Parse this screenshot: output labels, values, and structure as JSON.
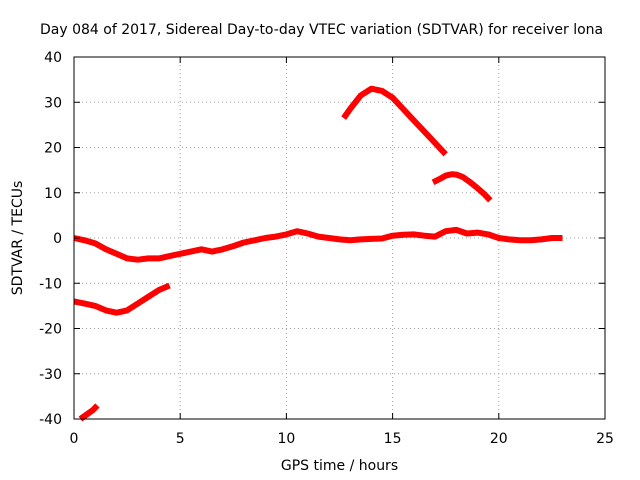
{
  "chart_data": {
    "type": "line",
    "title": "Day 084 of 2017, Sidereal Day-to-day VTEC variation (SDTVAR) for receiver lona",
    "xlabel": "GPS time / hours",
    "ylabel": "SDTVAR / TECUs",
    "xlim": [
      0,
      25
    ],
    "ylim": [
      -40,
      40
    ],
    "xticks": [
      0,
      5,
      10,
      15,
      20,
      25
    ],
    "yticks": [
      -40,
      -30,
      -20,
      -10,
      0,
      10,
      20,
      30,
      40
    ],
    "grid": true,
    "series_color": "#ff0000",
    "series": [
      {
        "name": "main",
        "x": [
          0.0,
          0.5,
          1.0,
          1.5,
          2.0,
          2.5,
          3.0,
          3.5,
          4.0,
          4.5,
          5.0,
          5.5,
          6.0,
          6.5,
          7.0,
          7.5,
          8.0,
          8.5,
          9.0,
          9.5,
          10.0,
          10.5,
          11.0,
          11.5,
          12.0,
          12.5,
          13.0,
          13.5,
          14.0,
          14.5,
          15.0,
          15.5,
          16.0,
          16.5,
          17.0,
          17.5,
          18.0,
          18.5,
          19.0,
          19.5,
          20.0,
          20.5,
          21.0,
          21.5,
          22.0,
          22.5,
          23.0
        ],
        "y": [
          0.0,
          -0.5,
          -1.2,
          -2.5,
          -3.5,
          -4.5,
          -4.8,
          -4.5,
          -4.5,
          -4.0,
          -3.5,
          -3.0,
          -2.5,
          -3.0,
          -2.5,
          -1.8,
          -1.0,
          -0.5,
          0.0,
          0.3,
          0.8,
          1.5,
          1.0,
          0.3,
          0.0,
          -0.3,
          -0.5,
          -0.3,
          -0.2,
          -0.1,
          0.5,
          0.7,
          0.8,
          0.5,
          0.3,
          1.5,
          1.8,
          1.0,
          1.2,
          0.8,
          0.0,
          -0.3,
          -0.5,
          -0.5,
          -0.3,
          0.0,
          0.0
        ]
      },
      {
        "name": "segment-2",
        "x": [
          0.0,
          0.5,
          1.0,
          1.5,
          2.0,
          2.5,
          3.0,
          3.5,
          4.0,
          4.5
        ],
        "y": [
          -14.0,
          -14.5,
          -15.0,
          -16.0,
          -16.5,
          -16.0,
          -14.5,
          -13.0,
          -11.5,
          -10.5
        ]
      },
      {
        "name": "segment-3",
        "x": [
          0.3,
          0.6,
          0.9,
          1.1
        ],
        "y": [
          -40.0,
          -39.0,
          -38.0,
          -37.0
        ]
      },
      {
        "name": "segment-4",
        "x": [
          12.7,
          13.0,
          13.5,
          14.0,
          14.5,
          15.0,
          15.5,
          16.0,
          16.5,
          17.0,
          17.5
        ],
        "y": [
          26.5,
          28.5,
          31.5,
          33.0,
          32.5,
          31.0,
          28.5,
          26.0,
          23.5,
          21.0,
          18.5
        ]
      },
      {
        "name": "segment-5",
        "x": [
          16.9,
          17.2,
          17.5,
          17.8,
          18.0,
          18.3,
          18.6,
          19.0,
          19.3,
          19.6
        ],
        "y": [
          12.3,
          13.0,
          13.8,
          14.1,
          14.0,
          13.5,
          12.5,
          11.0,
          9.8,
          8.3
        ]
      }
    ]
  }
}
